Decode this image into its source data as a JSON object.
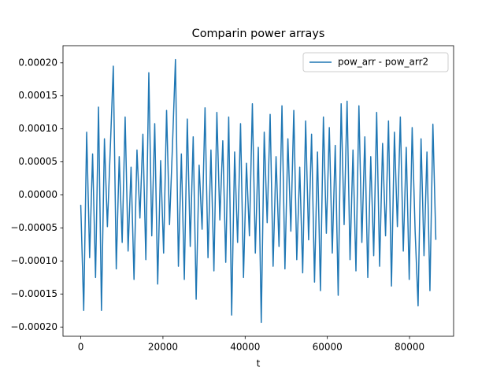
{
  "chart_data": {
    "type": "line",
    "title": "Comparin power arrays",
    "xlabel": "t",
    "legend": "upper right",
    "grid": false,
    "xlim": [
      -4320,
      90720
    ],
    "xticks": [
      0,
      20000,
      40000,
      60000,
      80000
    ],
    "ylim": [
      -0.000214,
      0.000226
    ],
    "yticks": [
      {
        "value": -0.0002,
        "label": "−0.00020"
      },
      {
        "value": -0.00015,
        "label": "−0.00015"
      },
      {
        "value": -0.0001,
        "label": "−0.00010"
      },
      {
        "value": -5e-05,
        "label": "−0.00005"
      },
      {
        "value": 0,
        "label": "0.00000"
      },
      {
        "value": 5e-05,
        "label": "0.00005"
      },
      {
        "value": 0.0001,
        "label": "0.00010"
      },
      {
        "value": 0.00015,
        "label": "0.00015"
      },
      {
        "value": 0.0002,
        "label": "0.00020"
      }
    ],
    "x": [
      0,
      720,
      1440,
      2160,
      2880,
      3600,
      4320,
      5040,
      5760,
      6480,
      7200,
      7920,
      8640,
      9360,
      10080,
      10800,
      11520,
      12240,
      12960,
      13680,
      14400,
      15120,
      15840,
      16560,
      17280,
      18000,
      18720,
      19440,
      20160,
      20880,
      21600,
      22320,
      23040,
      23760,
      24480,
      25200,
      25920,
      26640,
      27360,
      28080,
      28800,
      29520,
      30240,
      30960,
      31680,
      32400,
      33120,
      33840,
      34560,
      35280,
      36000,
      36720,
      37440,
      38160,
      38880,
      39600,
      40320,
      41040,
      41760,
      42480,
      43200,
      43920,
      44640,
      45360,
      46080,
      46800,
      47520,
      48240,
      48960,
      49680,
      50400,
      51120,
      51840,
      52560,
      53280,
      54000,
      54720,
      55440,
      56160,
      56880,
      57600,
      58320,
      59040,
      59760,
      60480,
      61200,
      61920,
      62640,
      63360,
      64080,
      64800,
      65520,
      66240,
      66960,
      67680,
      68400,
      69120,
      69840,
      70560,
      71280,
      72000,
      72720,
      73440,
      74160,
      74880,
      75600,
      76320,
      77040,
      77760,
      78480,
      79200,
      79920,
      80640,
      81360,
      82080,
      82800,
      83520,
      84240,
      84960,
      85680,
      86400
    ],
    "series": [
      {
        "name": "pow_arr - pow_arr2",
        "color": "#1f77b4",
        "values": [
          -1.5e-05,
          -0.000175,
          9.5e-05,
          -9.5e-05,
          6.2e-05,
          -0.000125,
          0.000133,
          -0.000175,
          8.5e-05,
          -4.8e-05,
          7.2e-05,
          0.000195,
          -0.000112,
          5.8e-05,
          -7.2e-05,
          0.000118,
          -8.5e-05,
          4.2e-05,
          -0.000128,
          6.8e-05,
          -3.5e-05,
          9.2e-05,
          -9.8e-05,
          0.000185,
          -6.2e-05,
          0.000108,
          -0.000135,
          5.2e-05,
          -8.8e-05,
          0.000128,
          -4.5e-05,
          7.5e-05,
          0.000205,
          -0.000108,
          6.2e-05,
          -0.000128,
          0.000115,
          -7.8e-05,
          8.8e-05,
          -0.000158,
          4.5e-05,
          -5.2e-05,
          0.000132,
          -9.5e-05,
          6.8e-05,
          -0.000115,
          0.000125,
          -3.8e-05,
          8.2e-05,
          -0.000102,
          0.000118,
          -0.000182,
          6.5e-05,
          -7.2e-05,
          0.000108,
          -0.000125,
          4.8e-05,
          -6.2e-05,
          0.000138,
          -8.8e-05,
          7.2e-05,
          -0.000193,
          9.5e-05,
          -4.2e-05,
          0.000122,
          -0.000108,
          5.8e-05,
          -7.8e-05,
          0.000135,
          -0.000112,
          8.5e-05,
          -5.5e-05,
          0.000128,
          -9.8e-05,
          4.2e-05,
          -0.000118,
          0.000112,
          -6.8e-05,
          9.2e-05,
          -0.000132,
          6.5e-05,
          -0.000145,
          0.000118,
          -5.8e-05,
          0.000102,
          -8.8e-05,
          7.5e-05,
          -0.000152,
          0.000138,
          -4.5e-05,
          0.000142,
          -9.8e-05,
          6.8e-05,
          -0.000115,
          0.000135,
          -7.2e-05,
          8.8e-05,
          -0.000125,
          5.8e-05,
          -9.2e-05,
          0.000125,
          -0.000108,
          7.8e-05,
          -6.2e-05,
          0.000112,
          -0.000138,
          9.5e-05,
          -4.8e-05,
          0.000118,
          -8.5e-05,
          7.2e-05,
          -0.000128,
          0.000102,
          -5.5e-05,
          -0.000168,
          8.5e-05,
          -9.2e-05,
          6.5e-05,
          -0.000145,
          0.000107,
          -6.8e-05
        ]
      }
    ]
  }
}
